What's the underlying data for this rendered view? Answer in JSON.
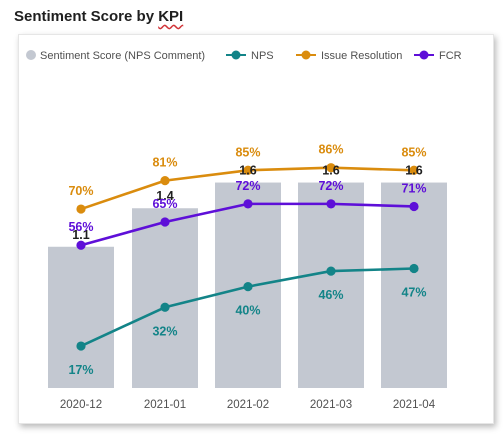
{
  "title_prefix": "Sentiment Score by ",
  "title_suffix": "KPI",
  "chart_data": {
    "type": "bar",
    "title": "Sentiment Score by KPI",
    "categories": [
      "2020-12",
      "2021-01",
      "2021-02",
      "2021-03",
      "2021-04"
    ],
    "bar_series": {
      "name": "Sentiment Score (NPS Comment)",
      "color": "#c3c8d1",
      "values": [
        1.1,
        1.4,
        1.6,
        1.6,
        1.6
      ],
      "labels": [
        "1.1",
        "1.4",
        "1.6",
        "1.6",
        "1.6"
      ]
    },
    "line_series": [
      {
        "name": "NPS",
        "color": "#138488",
        "values": [
          17,
          32,
          40,
          46,
          47
        ],
        "labels": [
          "17%",
          "32%",
          "40%",
          "46%",
          "47%"
        ]
      },
      {
        "name": "Issue Resolution",
        "color": "#da8c0e",
        "values": [
          70,
          81,
          85,
          86,
          85
        ],
        "labels": [
          "70%",
          "81%",
          "85%",
          "86%",
          "85%"
        ]
      },
      {
        "name": "FCR",
        "color": "#5e0fd8",
        "values": [
          56,
          65,
          72,
          72,
          71
        ],
        "labels": [
          "56%",
          "65%",
          "72%",
          "72%",
          "71%"
        ]
      }
    ],
    "legend_position": "top-left",
    "grid": false
  }
}
